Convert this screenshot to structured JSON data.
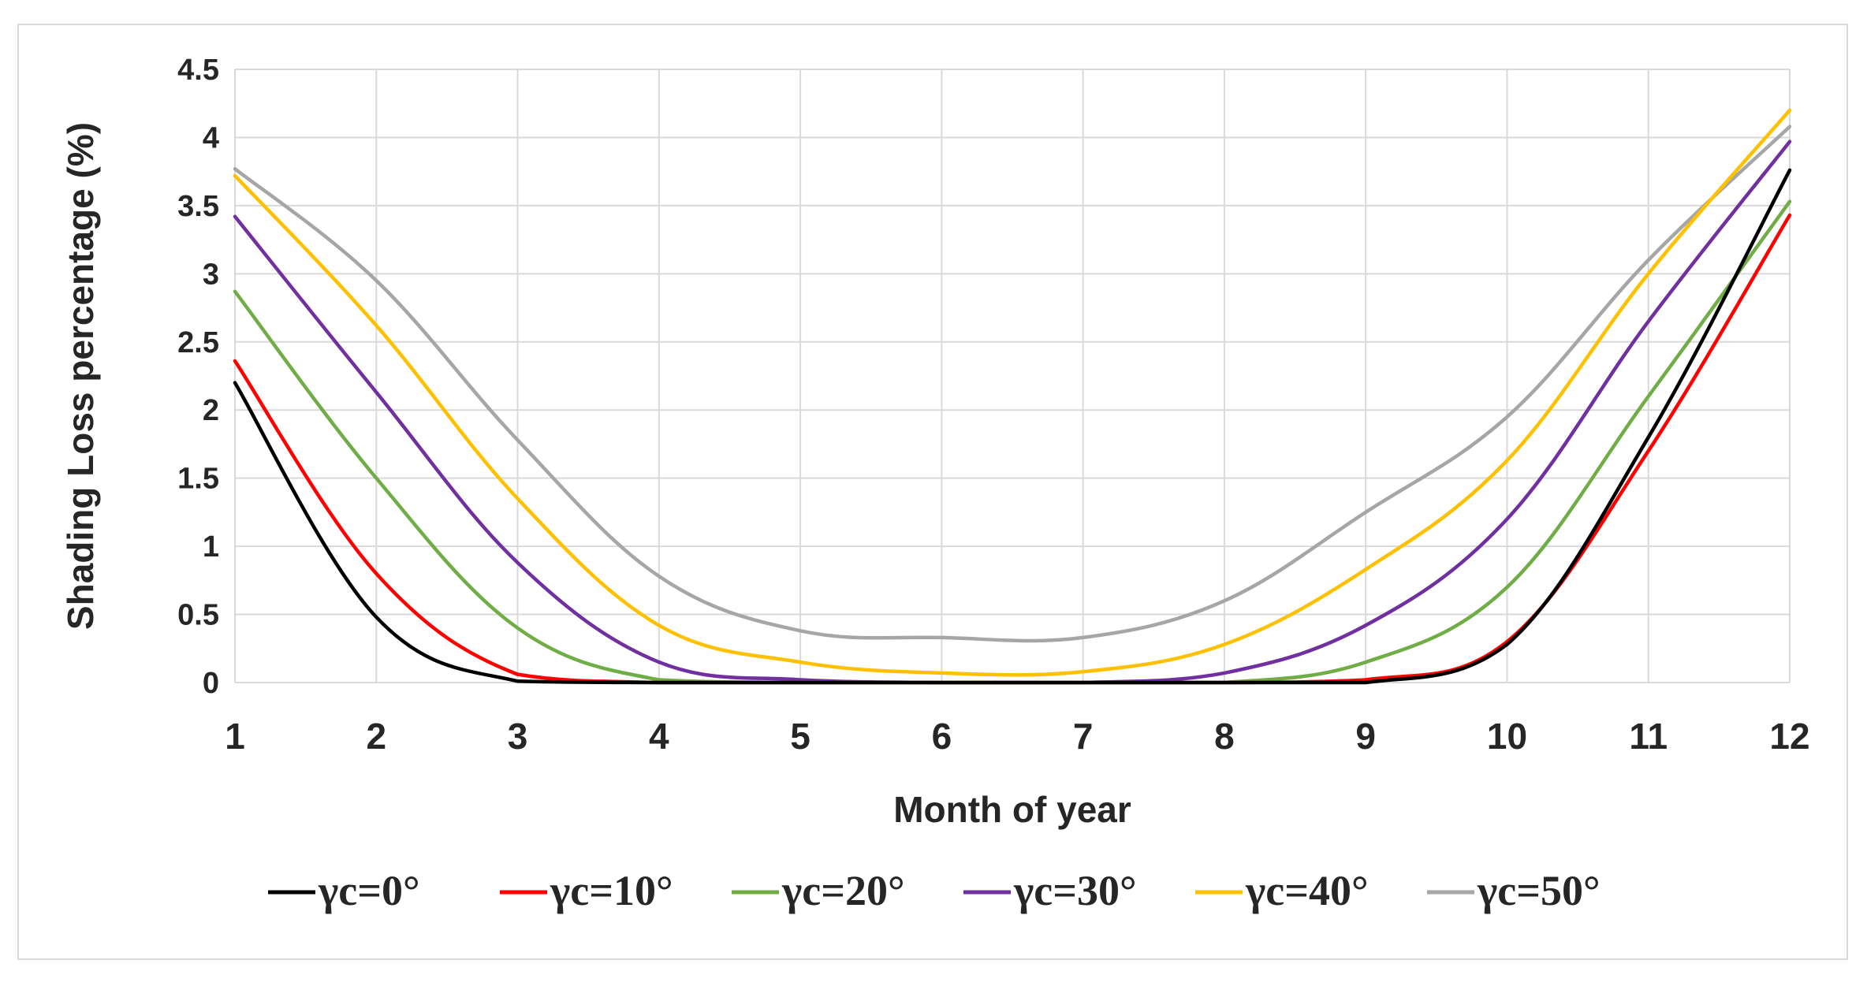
{
  "chart_data": {
    "type": "line",
    "title": "",
    "xlabel": "Month of year",
    "ylabel": "Shading Loss percentage (%)",
    "xlim": [
      1,
      12
    ],
    "ylim": [
      0,
      4.5
    ],
    "x_ticks": [
      "1",
      "2",
      "3",
      "4",
      "5",
      "6",
      "7",
      "8",
      "9",
      "10",
      "11",
      "12"
    ],
    "y_ticks": [
      "0",
      "0.5",
      "1",
      "1.5",
      "2",
      "2.5",
      "3",
      "3.5",
      "4",
      "4.5"
    ],
    "grid": true,
    "legend_position": "bottom",
    "x": [
      1,
      2,
      3,
      4,
      5,
      6,
      7,
      8,
      9,
      10,
      11,
      12
    ],
    "series": [
      {
        "name": "γc=0°",
        "color": "#000000",
        "values": [
          2.2,
          0.48,
          0.01,
          0,
          0,
          0,
          0,
          0,
          0,
          0.28,
          1.8,
          3.76
        ]
      },
      {
        "name": "γc=10°",
        "color": "#ff0000",
        "values": [
          2.36,
          0.8,
          0.06,
          0,
          0,
          0,
          0,
          0,
          0.02,
          0.3,
          1.7,
          3.43
        ]
      },
      {
        "name": "γc=20°",
        "color": "#70ad47",
        "values": [
          2.87,
          1.5,
          0.4,
          0.02,
          0,
          0,
          0,
          0,
          0.15,
          0.7,
          2.1,
          3.53
        ]
      },
      {
        "name": "γc=30°",
        "color": "#7030a0",
        "values": [
          3.42,
          2.13,
          0.88,
          0.15,
          0.02,
          0,
          0,
          0.07,
          0.42,
          1.2,
          2.65,
          3.97
        ]
      },
      {
        "name": "γc=40°",
        "color": "#ffc000",
        "values": [
          3.72,
          2.62,
          1.35,
          0.42,
          0.15,
          0.07,
          0.08,
          0.28,
          0.83,
          1.63,
          3.0,
          4.2
        ]
      },
      {
        "name": "γc=50°",
        "color": "#a6a6a6",
        "values": [
          3.77,
          2.95,
          1.78,
          0.78,
          0.38,
          0.33,
          0.33,
          0.6,
          1.25,
          1.95,
          3.1,
          4.08
        ]
      }
    ]
  }
}
